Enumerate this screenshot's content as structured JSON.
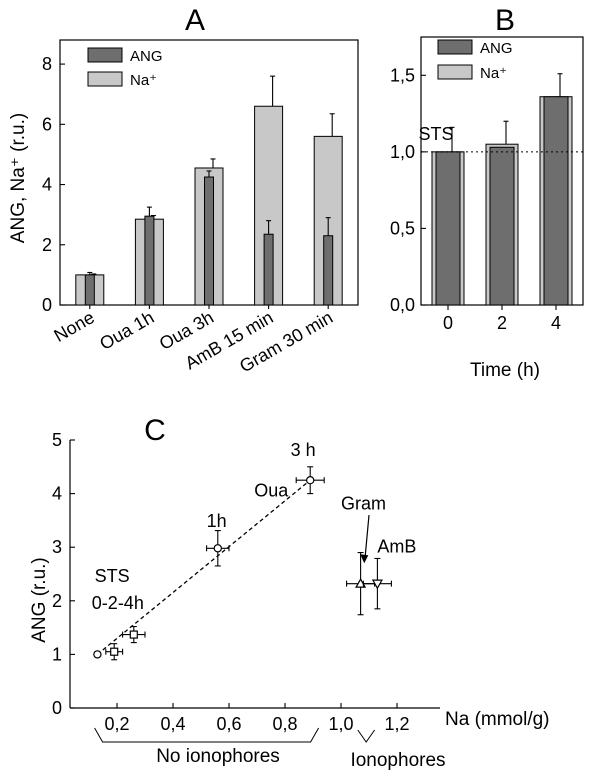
{
  "colors": {
    "ang": "#6e6e6e",
    "na": "#c8c8c8",
    "stroke": "#000000"
  },
  "chart_data": [
    {
      "panel": "A",
      "type": "bar",
      "ylabel": "ANG, Na⁺ (r.u.)",
      "ylim": [
        0,
        8.8
      ],
      "yticks": [
        0,
        2,
        4,
        6,
        8
      ],
      "ytick_labels": [
        "0",
        "2",
        "4",
        "6",
        "8"
      ],
      "categories": [
        "None",
        "Oua 1h",
        "Oua 3h",
        "AmB 15 min",
        "Gram 30 min"
      ],
      "legend_position": "top-left",
      "series": [
        {
          "name": "Na⁺",
          "color_key": "na",
          "values": [
            1.0,
            2.85,
            4.55,
            6.6,
            5.6
          ],
          "errors": [
            0.03,
            0.12,
            0.3,
            1.0,
            0.75
          ]
        },
        {
          "name": "ANG",
          "color_key": "ang",
          "values": [
            1.0,
            2.95,
            4.25,
            2.35,
            2.3
          ],
          "errors": [
            0.08,
            0.3,
            0.2,
            0.45,
            0.6
          ]
        }
      ]
    },
    {
      "panel": "B",
      "type": "bar",
      "xlabel": "Time (h)",
      "ylim": [
        0,
        1.75
      ],
      "yticks": [
        0,
        0.5,
        1.0,
        1.5
      ],
      "ytick_labels": [
        "0,0",
        "0,5",
        "1,0",
        "1,5"
      ],
      "categories": [
        "0",
        "2",
        "4"
      ],
      "legend_position": "top-left",
      "annotation": "STS",
      "reference_line_y": 1.0,
      "series": [
        {
          "name": "Na⁺",
          "color_key": "na",
          "values": [
            1.0,
            1.05,
            1.36
          ],
          "errors": [
            0.16,
            0.15,
            0.15
          ]
        },
        {
          "name": "ANG",
          "color_key": "ang",
          "values": [
            1.0,
            1.03,
            1.36
          ],
          "errors": [
            0.0,
            0.0,
            0.0
          ]
        }
      ]
    },
    {
      "panel": "C",
      "type": "scatter",
      "xlabel": "Na (mmol/g)",
      "ylabel": "ANG (r.u.)",
      "xlim": [
        0.0,
        1.28
      ],
      "ylim": [
        0,
        5
      ],
      "xticks": [
        0.2,
        0.4,
        0.6,
        0.8,
        1.0,
        1.2
      ],
      "xtick_labels": [
        "0,2",
        "0,4",
        "0,6",
        "0,8",
        "1,0",
        "1,2"
      ],
      "yticks": [
        0,
        1,
        2,
        3,
        4,
        5
      ],
      "ytick_labels": [
        "0",
        "1",
        "2",
        "3",
        "4",
        "5"
      ],
      "points": [
        {
          "x": 0.13,
          "y": 1.0,
          "xerr": 0.0,
          "yerr": 0.0,
          "marker": "circle"
        },
        {
          "x": 0.19,
          "y": 1.05,
          "xerr": 0.03,
          "yerr": 0.15,
          "marker": "square"
        },
        {
          "x": 0.26,
          "y": 1.37,
          "xerr": 0.04,
          "yerr": 0.15,
          "marker": "square"
        },
        {
          "x": 0.56,
          "y": 2.98,
          "xerr": 0.04,
          "yerr": 0.33,
          "marker": "circle"
        },
        {
          "x": 0.89,
          "y": 4.25,
          "xerr": 0.05,
          "yerr": 0.25,
          "marker": "circle"
        },
        {
          "x": 1.07,
          "y": 2.32,
          "xerr": 0.05,
          "yerr": 0.58,
          "marker": "triangle-up"
        },
        {
          "x": 1.13,
          "y": 2.32,
          "xerr": 0.05,
          "yerr": 0.47,
          "marker": "triangle-down"
        }
      ],
      "trend_line": {
        "x": [
          0.13,
          0.89
        ],
        "y": [
          1.0,
          4.25
        ],
        "style": "dashed"
      },
      "annotations": [
        {
          "text": "STS",
          "x": 0.12,
          "y": 2.35
        },
        {
          "text": "0-2-4h",
          "x": 0.11,
          "y": 1.85
        },
        {
          "text": "1h",
          "x": 0.52,
          "y": 3.38
        },
        {
          "text": "Oua",
          "x": 0.69,
          "y": 3.95
        },
        {
          "text": "3 h",
          "x": 0.82,
          "y": 4.7
        },
        {
          "text": "Gram",
          "x": 1.0,
          "y": 3.7
        },
        {
          "text": "AmB",
          "x": 1.13,
          "y": 2.9
        }
      ],
      "group_labels": [
        "No ionophores",
        "Ionophores"
      ]
    }
  ]
}
